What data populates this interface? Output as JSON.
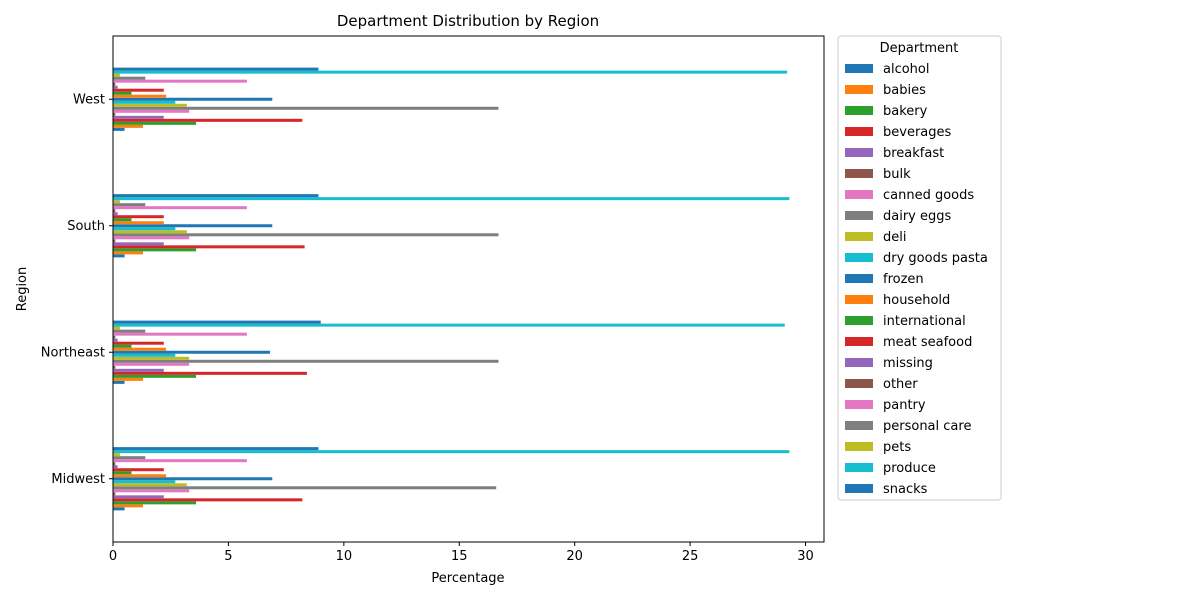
{
  "chart_data": {
    "type": "bar",
    "orientation": "horizontal",
    "title": "Department Distribution by Region",
    "xlabel": "Percentage",
    "ylabel": "Region",
    "xlim": [
      0,
      30.8
    ],
    "xticks": [
      0,
      5,
      10,
      15,
      20,
      25,
      30
    ],
    "categories": [
      "Midwest",
      "Northeast",
      "South",
      "West"
    ],
    "legend_title": "Department",
    "legend_position": "outside-right",
    "grid": false,
    "series": [
      {
        "name": "alcohol",
        "color": "#1f77b4",
        "values": [
          0.5,
          0.5,
          0.5,
          0.5
        ]
      },
      {
        "name": "babies",
        "color": "#ff7f0e",
        "values": [
          1.3,
          1.3,
          1.3,
          1.3
        ]
      },
      {
        "name": "bakery",
        "color": "#2ca02c",
        "values": [
          3.6,
          3.6,
          3.6,
          3.6
        ]
      },
      {
        "name": "beverages",
        "color": "#d62728",
        "values": [
          8.2,
          8.4,
          8.3,
          8.2
        ]
      },
      {
        "name": "breakfast",
        "color": "#9467bd",
        "values": [
          2.2,
          2.2,
          2.2,
          2.2
        ]
      },
      {
        "name": "bulk",
        "color": "#8c564b",
        "values": [
          0.1,
          0.1,
          0.1,
          0.1
        ]
      },
      {
        "name": "canned goods",
        "color": "#e377c2",
        "values": [
          3.3,
          3.3,
          3.3,
          3.3
        ]
      },
      {
        "name": "dairy eggs",
        "color": "#7f7f7f",
        "values": [
          16.6,
          16.7,
          16.7,
          16.7
        ]
      },
      {
        "name": "deli",
        "color": "#bcbd22",
        "values": [
          3.2,
          3.3,
          3.2,
          3.2
        ]
      },
      {
        "name": "dry goods pasta",
        "color": "#17becf",
        "values": [
          2.7,
          2.7,
          2.7,
          2.7
        ]
      },
      {
        "name": "frozen",
        "color": "#1f77b4",
        "values": [
          6.9,
          6.8,
          6.9,
          6.9
        ]
      },
      {
        "name": "household",
        "color": "#ff7f0e",
        "values": [
          2.3,
          2.3,
          2.2,
          2.3
        ]
      },
      {
        "name": "international",
        "color": "#2ca02c",
        "values": [
          0.8,
          0.8,
          0.8,
          0.8
        ]
      },
      {
        "name": "meat seafood",
        "color": "#d62728",
        "values": [
          2.2,
          2.2,
          2.2,
          2.2
        ]
      },
      {
        "name": "missing",
        "color": "#9467bd",
        "values": [
          0.2,
          0.2,
          0.2,
          0.2
        ]
      },
      {
        "name": "other",
        "color": "#8c564b",
        "values": [
          0.1,
          0.1,
          0.1,
          0.1
        ]
      },
      {
        "name": "pantry",
        "color": "#e377c2",
        "values": [
          5.8,
          5.8,
          5.8,
          5.8
        ]
      },
      {
        "name": "personal care",
        "color": "#7f7f7f",
        "values": [
          1.4,
          1.4,
          1.4,
          1.4
        ]
      },
      {
        "name": "pets",
        "color": "#bcbd22",
        "values": [
          0.3,
          0.3,
          0.3,
          0.3
        ]
      },
      {
        "name": "produce",
        "color": "#17becf",
        "values": [
          29.3,
          29.1,
          29.3,
          29.2
        ]
      },
      {
        "name": "snacks",
        "color": "#1f77b4",
        "values": [
          8.9,
          9.0,
          8.9,
          8.9
        ]
      }
    ]
  }
}
